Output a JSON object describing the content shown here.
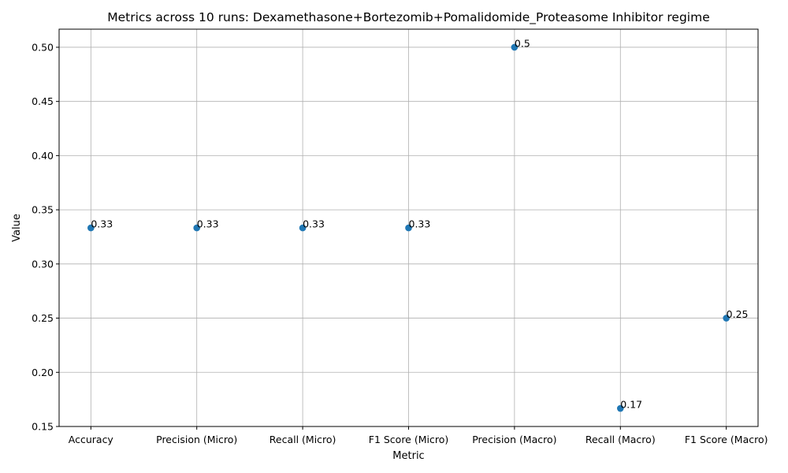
{
  "chart_data": {
    "type": "scatter",
    "title": "Metrics across 10 runs: Dexamethasone+Bortezomib+Pomalidomide_Proteasome Inhibitor regime",
    "xlabel": "Metric",
    "ylabel": "Value",
    "categories": [
      "Accuracy",
      "Precision (Micro)",
      "Recall (Micro)",
      "F1 Score (Micro)",
      "Precision (Macro)",
      "Recall (Macro)",
      "F1 Score (Macro)"
    ],
    "values": [
      0.3333,
      0.3333,
      0.3333,
      0.3333,
      0.5,
      0.1667,
      0.25
    ],
    "value_labels": [
      "0.33",
      "0.33",
      "0.33",
      "0.33",
      "0.5",
      "0.17",
      "0.25"
    ],
    "ylim": [
      0.15,
      0.5167
    ],
    "yticks": [
      "0.15",
      "0.20",
      "0.25",
      "0.30",
      "0.35",
      "0.40",
      "0.45",
      "0.50"
    ],
    "grid": true,
    "colors": {
      "marker": "#1f77b4",
      "grid": "#b0b0b0",
      "axes": "#000000"
    }
  }
}
